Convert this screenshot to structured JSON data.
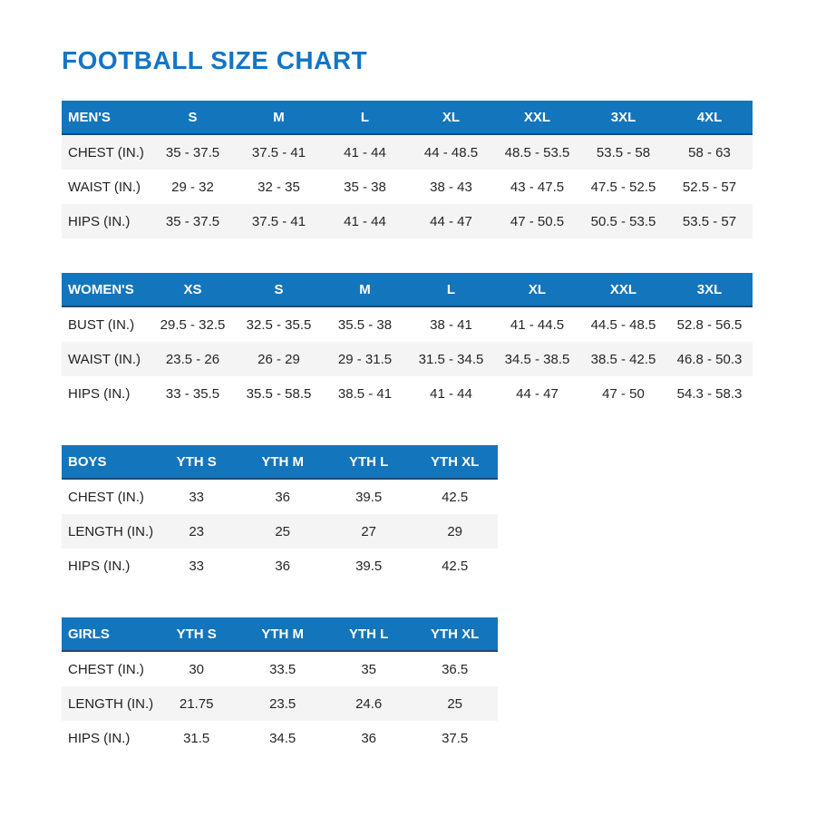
{
  "title": "FOOTBALL SIZE CHART",
  "colors": {
    "accent_blue": "#1375bc",
    "title_blue": "#1375c4",
    "row_shade": "#f4f4f5",
    "header_text": "#ffffff"
  },
  "tables": [
    {
      "name": "MEN'S",
      "slug": "mens",
      "first_row_shaded": true,
      "columns": [
        "S",
        "M",
        "L",
        "XL",
        "XXL",
        "3XL",
        "4XL"
      ],
      "rows": [
        {
          "label": "CHEST (IN.)",
          "values": [
            "35 - 37.5",
            "37.5 - 41",
            "41 - 44",
            "44 - 48.5",
            "48.5 - 53.5",
            "53.5 - 58",
            "58 - 63"
          ]
        },
        {
          "label": "WAIST (IN.)",
          "values": [
            "29 - 32",
            "32 - 35",
            "35 - 38",
            "38 - 43",
            "43 - 47.5",
            "47.5 - 52.5",
            "52.5 - 57"
          ]
        },
        {
          "label": "HIPS (IN.)",
          "values": [
            "35 - 37.5",
            "37.5 - 41",
            "41 - 44",
            "44 - 47",
            "47 - 50.5",
            "50.5 - 53.5",
            "53.5 - 57"
          ]
        }
      ]
    },
    {
      "name": "WOMEN'S",
      "slug": "womens",
      "first_row_shaded": false,
      "columns": [
        "XS",
        "S",
        "M",
        "L",
        "XL",
        "XXL",
        "3XL"
      ],
      "rows": [
        {
          "label": "BUST (IN.)",
          "values": [
            "29.5 - 32.5",
            "32.5 - 35.5",
            "35.5 - 38",
            "38 - 41",
            "41 - 44.5",
            "44.5 - 48.5",
            "52.8 - 56.5"
          ]
        },
        {
          "label": "WAIST (IN.)",
          "values": [
            "23.5 - 26",
            "26 - 29",
            "29 - 31.5",
            "31.5 - 34.5",
            "34.5 - 38.5",
            "38.5 - 42.5",
            "46.8 - 50.3"
          ]
        },
        {
          "label": "HIPS (IN.)",
          "values": [
            "33 - 35.5",
            "35.5 - 58.5",
            "38.5 - 41",
            "41 - 44",
            "44 - 47",
            "47 - 50",
            "54.3 - 58.3"
          ]
        }
      ]
    },
    {
      "name": "BOYS",
      "slug": "boys",
      "first_row_shaded": false,
      "columns": [
        "YTH S",
        "YTH M",
        "YTH L",
        "YTH XL"
      ],
      "rows": [
        {
          "label": "CHEST (IN.)",
          "values": [
            "33",
            "36",
            "39.5",
            "42.5"
          ]
        },
        {
          "label": "LENGTH (IN.)",
          "values": [
            "23",
            "25",
            "27",
            "29"
          ]
        },
        {
          "label": "HIPS (IN.)",
          "values": [
            "33",
            "36",
            "39.5",
            "42.5"
          ]
        }
      ]
    },
    {
      "name": "GIRLS",
      "slug": "girls",
      "first_row_shaded": false,
      "columns": [
        "YTH S",
        "YTH M",
        "YTH L",
        "YTH XL"
      ],
      "rows": [
        {
          "label": "CHEST (IN.)",
          "values": [
            "30",
            "33.5",
            "35",
            "36.5"
          ]
        },
        {
          "label": "LENGTH (IN.)",
          "values": [
            "21.75",
            "23.5",
            "24.6",
            "25"
          ]
        },
        {
          "label": "HIPS (IN.)",
          "values": [
            "31.5",
            "34.5",
            "36",
            "37.5"
          ]
        }
      ]
    }
  ]
}
